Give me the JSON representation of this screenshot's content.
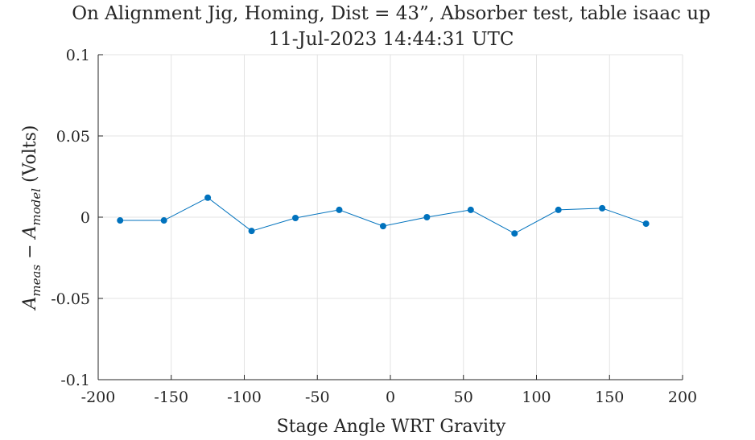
{
  "chart_data": {
    "type": "line",
    "title": "On Alignment Jig, Homing, Dist = 43”, Absorber test, table isaac up",
    "subtitle": "11-Jul-2023 14:44:31 UTC",
    "xlabel": "Stage Angle WRT Gravity",
    "ylabel": "A_meas − A_model (Volts)",
    "xlim": [
      -200,
      200
    ],
    "ylim": [
      -0.1,
      0.1
    ],
    "x_ticks": [
      "-200",
      "-150",
      "-100",
      "-50",
      "0",
      "50",
      "100",
      "150",
      "200"
    ],
    "y_ticks": [
      "-0.1",
      "-0.05",
      "0",
      "0.05",
      "0.1"
    ],
    "grid": true,
    "series": [
      {
        "color": "#0072BD",
        "x": [
          -185,
          -155,
          -125,
          -95,
          -65,
          -35,
          -5,
          25,
          55,
          85,
          115,
          145,
          175
        ],
        "y": [
          -0.002,
          -0.002,
          0.012,
          -0.0085,
          -0.0005,
          0.0045,
          -0.0055,
          0.0,
          0.0045,
          -0.01,
          0.0045,
          0.0055,
          -0.004
        ]
      }
    ]
  }
}
